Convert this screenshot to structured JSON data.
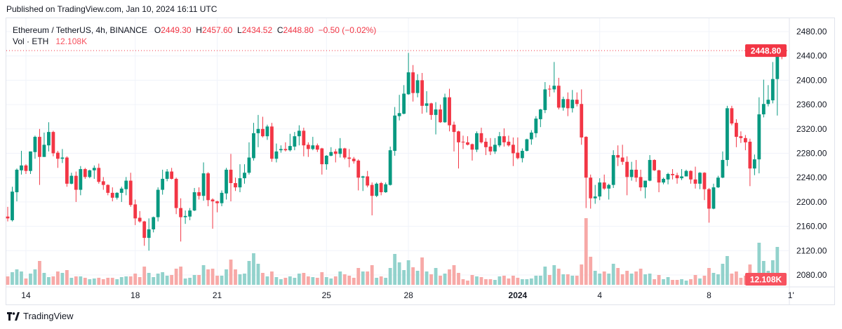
{
  "published": "Published on TradingView.com, Jan 10, 2024 16:11 UTC",
  "legend": {
    "symbol": "Ethereum / TetherUS, 4h, BINANCE",
    "o_label": "O",
    "o": "2449.30",
    "h_label": "H",
    "h": "2457.60",
    "l_label": "L",
    "l": "2434.52",
    "c_label": "C",
    "c": "2448.80",
    "change": "−0.50 (−0.02%)",
    "vol_label": "Vol · ETH",
    "vol": "12.108K"
  },
  "footer": {
    "brand": "TradingView",
    "logo_icon": "tradingview-logo-icon"
  },
  "colors": {
    "up": "#089981",
    "down": "#f23645",
    "vol_up": "#92d2cc",
    "vol_down": "#f7a9a7",
    "grid": "#f0f3fa",
    "last_price": "#f23645",
    "vol_label": "#f7525f"
  },
  "chart_data": {
    "type": "candlestick",
    "symbol": "ETHUSDT",
    "interval": "4h",
    "start": "2023-12-13T08:00:00Z",
    "ylim": [
      2080,
      2480
    ],
    "grid": true,
    "y_ticks": [
      "2080.00",
      "2120.00",
      "2160.00",
      "2200.00",
      "2240.00",
      "2280.00",
      "2320.00",
      "2360.00",
      "2400.00",
      "2440.00",
      "2480.00"
    ],
    "x_ticks": [
      {
        "label": "14",
        "date": "2023-12-14T00:00:00Z"
      },
      {
        "label": "18",
        "date": "2023-12-18T00:00:00Z"
      },
      {
        "label": "21",
        "date": "2023-12-21T00:00:00Z"
      },
      {
        "label": "25",
        "date": "2023-12-25T00:00:00Z"
      },
      {
        "label": "28",
        "date": "2023-12-28T00:00:00Z"
      },
      {
        "label": "2024",
        "date": "2024-01-01T00:00:00Z"
      },
      {
        "label": "4",
        "date": "2024-01-04T00:00:00Z"
      },
      {
        "label": "8",
        "date": "2024-01-08T00:00:00Z"
      },
      {
        "label": "1'",
        "date": "2024-01-11T00:00:00Z"
      }
    ],
    "last_price_label": "2448.80",
    "last_volume_label": "12.108K",
    "ohlc": [
      [
        2176,
        2192,
        2168,
        2173
      ],
      [
        2170,
        2225,
        2168,
        2217
      ],
      [
        2216,
        2255,
        2201,
        2253
      ],
      [
        2252,
        2284,
        2245,
        2260
      ],
      [
        2260,
        2262,
        2246,
        2251
      ],
      [
        2251,
        2283,
        2246,
        2283
      ],
      [
        2282,
        2309,
        2271,
        2307
      ],
      [
        2307,
        2320,
        2228,
        2274
      ],
      [
        2274,
        2314,
        2274,
        2294
      ],
      [
        2293,
        2331,
        2283,
        2315
      ],
      [
        2315,
        2317,
        2275,
        2280
      ],
      [
        2281,
        2284,
        2256,
        2271
      ],
      [
        2271,
        2287,
        2264,
        2273
      ],
      [
        2273,
        2275,
        2225,
        2230
      ],
      [
        2230,
        2248,
        2229,
        2243
      ],
      [
        2243,
        2250,
        2200,
        2220
      ],
      [
        2220,
        2259,
        2211,
        2254
      ],
      [
        2254,
        2256,
        2238,
        2241
      ],
      [
        2241,
        2253,
        2239,
        2252
      ],
      [
        2252,
        2260,
        2238,
        2256
      ],
      [
        2256,
        2263,
        2230,
        2233
      ],
      [
        2234,
        2241,
        2220,
        2228
      ],
      [
        2228,
        2229,
        2211,
        2215
      ],
      [
        2215,
        2224,
        2201,
        2207
      ],
      [
        2207,
        2216,
        2204,
        2215
      ],
      [
        2215,
        2225,
        2200,
        2222
      ],
      [
        2221,
        2241,
        2211,
        2235
      ],
      [
        2235,
        2248,
        2192,
        2195
      ],
      [
        2196,
        2204,
        2162,
        2173
      ],
      [
        2174,
        2185,
        2166,
        2168
      ],
      [
        2168,
        2169,
        2128,
        2141
      ],
      [
        2141,
        2173,
        2120,
        2155
      ],
      [
        2155,
        2176,
        2150,
        2175
      ],
      [
        2175,
        2224,
        2168,
        2220
      ],
      [
        2220,
        2253,
        2212,
        2238
      ],
      [
        2238,
        2254,
        2234,
        2250
      ],
      [
        2250,
        2256,
        2237,
        2238
      ],
      [
        2238,
        2240,
        2180,
        2190
      ],
      [
        2190,
        2206,
        2135,
        2175
      ],
      [
        2175,
        2186,
        2164,
        2177
      ],
      [
        2176,
        2190,
        2170,
        2186
      ],
      [
        2186,
        2223,
        2185,
        2216
      ],
      [
        2216,
        2224,
        2204,
        2210
      ],
      [
        2210,
        2265,
        2202,
        2247
      ],
      [
        2247,
        2249,
        2193,
        2203
      ],
      [
        2204,
        2206,
        2156,
        2201
      ],
      [
        2201,
        2202,
        2183,
        2198
      ],
      [
        2198,
        2219,
        2193,
        2215
      ],
      [
        2214,
        2256,
        2204,
        2253
      ],
      [
        2253,
        2279,
        2201,
        2231
      ],
      [
        2231,
        2240,
        2218,
        2224
      ],
      [
        2224,
        2262,
        2216,
        2239
      ],
      [
        2239,
        2262,
        2230,
        2248
      ],
      [
        2248,
        2298,
        2245,
        2273
      ],
      [
        2272,
        2330,
        2268,
        2313
      ],
      [
        2313,
        2343,
        2290,
        2320
      ],
      [
        2320,
        2340,
        2306,
        2308
      ],
      [
        2308,
        2327,
        2302,
        2324
      ],
      [
        2324,
        2330,
        2266,
        2271
      ],
      [
        2271,
        2296,
        2265,
        2283
      ],
      [
        2285,
        2293,
        2281,
        2287
      ],
      [
        2287,
        2298,
        2283,
        2285
      ],
      [
        2285,
        2312,
        2283,
        2292
      ],
      [
        2291,
        2315,
        2285,
        2308
      ],
      [
        2308,
        2326,
        2293,
        2317
      ],
      [
        2317,
        2322,
        2275,
        2293
      ],
      [
        2294,
        2298,
        2274,
        2287
      ],
      [
        2287,
        2307,
        2285,
        2293
      ],
      [
        2293,
        2296,
        2282,
        2286
      ],
      [
        2288,
        2289,
        2245,
        2262
      ],
      [
        2262,
        2277,
        2253,
        2276
      ],
      [
        2276,
        2290,
        2275,
        2282
      ],
      [
        2283,
        2287,
        2265,
        2279
      ],
      [
        2279,
        2305,
        2273,
        2288
      ],
      [
        2288,
        2289,
        2270,
        2273
      ],
      [
        2273,
        2287,
        2257,
        2271
      ],
      [
        2271,
        2274,
        2263,
        2267
      ],
      [
        2268,
        2270,
        2219,
        2240
      ],
      [
        2240,
        2243,
        2218,
        2242
      ],
      [
        2242,
        2251,
        2224,
        2227
      ],
      [
        2228,
        2232,
        2178,
        2210
      ],
      [
        2210,
        2232,
        2208,
        2230
      ],
      [
        2231,
        2233,
        2211,
        2216
      ],
      [
        2216,
        2232,
        2215,
        2229
      ],
      [
        2228,
        2291,
        2227,
        2285
      ],
      [
        2284,
        2356,
        2276,
        2342
      ],
      [
        2341,
        2376,
        2334,
        2346
      ],
      [
        2345,
        2392,
        2344,
        2378
      ],
      [
        2377,
        2445,
        2376,
        2413
      ],
      [
        2413,
        2425,
        2365,
        2379
      ],
      [
        2379,
        2410,
        2372,
        2400
      ],
      [
        2400,
        2412,
        2345,
        2358
      ],
      [
        2358,
        2382,
        2347,
        2362
      ],
      [
        2362,
        2363,
        2335,
        2343
      ],
      [
        2343,
        2364,
        2311,
        2352
      ],
      [
        2352,
        2360,
        2330,
        2331
      ],
      [
        2331,
        2378,
        2330,
        2372
      ],
      [
        2372,
        2386,
        2316,
        2326
      ],
      [
        2327,
        2332,
        2283,
        2315
      ],
      [
        2316,
        2317,
        2255,
        2298
      ],
      [
        2299,
        2309,
        2287,
        2298
      ],
      [
        2298,
        2308,
        2293,
        2294
      ],
      [
        2295,
        2296,
        2268,
        2286
      ],
      [
        2286,
        2316,
        2282,
        2313
      ],
      [
        2313,
        2322,
        2296,
        2298
      ],
      [
        2299,
        2305,
        2277,
        2290
      ],
      [
        2291,
        2305,
        2277,
        2283
      ],
      [
        2283,
        2305,
        2279,
        2294
      ],
      [
        2293,
        2315,
        2290,
        2308
      ],
      [
        2308,
        2321,
        2291,
        2298
      ],
      [
        2299,
        2309,
        2291,
        2293
      ],
      [
        2294,
        2306,
        2259,
        2280
      ],
      [
        2281,
        2306,
        2270,
        2272
      ],
      [
        2272,
        2288,
        2265,
        2284
      ],
      [
        2284,
        2304,
        2283,
        2303
      ],
      [
        2303,
        2318,
        2294,
        2314
      ],
      [
        2313,
        2341,
        2306,
        2337
      ],
      [
        2336,
        2353,
        2323,
        2352
      ],
      [
        2351,
        2397,
        2346,
        2385
      ],
      [
        2386,
        2392,
        2373,
        2385
      ],
      [
        2385,
        2430,
        2380,
        2391
      ],
      [
        2391,
        2404,
        2352,
        2355
      ],
      [
        2355,
        2373,
        2350,
        2369
      ],
      [
        2369,
        2380,
        2341,
        2354
      ],
      [
        2354,
        2384,
        2347,
        2368
      ],
      [
        2368,
        2380,
        2357,
        2361
      ],
      [
        2361,
        2385,
        2294,
        2306
      ],
      [
        2307,
        2308,
        2190,
        2240
      ],
      [
        2240,
        2245,
        2189,
        2206
      ],
      [
        2206,
        2228,
        2197,
        2209
      ],
      [
        2209,
        2239,
        2203,
        2232
      ],
      [
        2232,
        2245,
        2220,
        2222
      ],
      [
        2222,
        2230,
        2204,
        2228
      ],
      [
        2228,
        2285,
        2223,
        2277
      ],
      [
        2277,
        2293,
        2259,
        2273
      ],
      [
        2273,
        2294,
        2261,
        2266
      ],
      [
        2266,
        2275,
        2211,
        2241
      ],
      [
        2241,
        2266,
        2235,
        2253
      ],
      [
        2253,
        2269,
        2233,
        2240
      ],
      [
        2241,
        2253,
        2218,
        2224
      ],
      [
        2224,
        2235,
        2206,
        2235
      ],
      [
        2235,
        2277,
        2234,
        2269
      ],
      [
        2269,
        2270,
        2251,
        2252
      ],
      [
        2252,
        2253,
        2216,
        2232
      ],
      [
        2232,
        2240,
        2229,
        2238
      ],
      [
        2237,
        2248,
        2229,
        2246
      ],
      [
        2246,
        2254,
        2237,
        2244
      ],
      [
        2244,
        2248,
        2230,
        2239
      ],
      [
        2239,
        2254,
        2236,
        2242
      ],
      [
        2242,
        2253,
        2242,
        2251
      ],
      [
        2251,
        2252,
        2230,
        2237
      ],
      [
        2237,
        2258,
        2222,
        2230
      ],
      [
        2230,
        2249,
        2221,
        2248
      ],
      [
        2248,
        2249,
        2203,
        2221
      ],
      [
        2221,
        2223,
        2166,
        2189
      ],
      [
        2189,
        2230,
        2188,
        2224
      ],
      [
        2224,
        2243,
        2223,
        2240
      ],
      [
        2240,
        2283,
        2239,
        2269
      ],
      [
        2269,
        2358,
        2259,
        2354
      ],
      [
        2354,
        2358,
        2326,
        2329
      ],
      [
        2330,
        2336,
        2290,
        2307
      ],
      [
        2308,
        2316,
        2297,
        2305
      ],
      [
        2305,
        2310,
        2285,
        2298
      ],
      [
        2299,
        2304,
        2226,
        2255
      ],
      [
        2255,
        2278,
        2244,
        2270
      ],
      [
        2270,
        2372,
        2247,
        2344
      ],
      [
        2344,
        2401,
        2339,
        2361
      ],
      [
        2361,
        2392,
        2357,
        2368
      ],
      [
        2367,
        2430,
        2362,
        2402
      ],
      [
        2402,
        2456,
        2342,
        2449
      ],
      [
        2449.3,
        2457.6,
        2434.52,
        2448.8
      ]
    ],
    "volume_k": [
      36,
      54,
      66,
      57,
      27,
      48,
      66,
      102,
      51,
      33,
      36,
      57,
      51,
      63,
      30,
      36,
      36,
      30,
      24,
      27,
      30,
      24,
      30,
      30,
      24,
      33,
      36,
      36,
      48,
      33,
      78,
      51,
      33,
      48,
      54,
      39,
      42,
      69,
      78,
      27,
      30,
      42,
      42,
      84,
      66,
      69,
      39,
      39,
      66,
      108,
      66,
      45,
      48,
      102,
      135,
      90,
      51,
      36,
      57,
      33,
      24,
      30,
      36,
      30,
      48,
      51,
      36,
      33,
      30,
      54,
      33,
      27,
      36,
      57,
      45,
      39,
      30,
      72,
      57,
      57,
      84,
      30,
      36,
      30,
      72,
      132,
      96,
      63,
      105,
      75,
      60,
      117,
      57,
      45,
      72,
      39,
      48,
      66,
      84,
      51,
      24,
      18,
      42,
      36,
      33,
      24,
      24,
      21,
      36,
      39,
      27,
      39,
      30,
      24,
      24,
      27,
      39,
      39,
      78,
      42,
      84,
      69,
      45,
      45,
      39,
      39,
      87,
      285,
      120,
      60,
      48,
      57,
      48,
      90,
      72,
      45,
      60,
      48,
      57,
      69,
      45,
      48,
      24,
      42,
      24,
      33,
      21,
      21,
      24,
      18,
      24,
      42,
      27,
      39,
      72,
      51,
      45,
      90,
      123,
      48,
      57,
      30,
      39,
      87,
      45,
      180,
      102,
      60,
      105,
      162,
      12.108
    ]
  }
}
